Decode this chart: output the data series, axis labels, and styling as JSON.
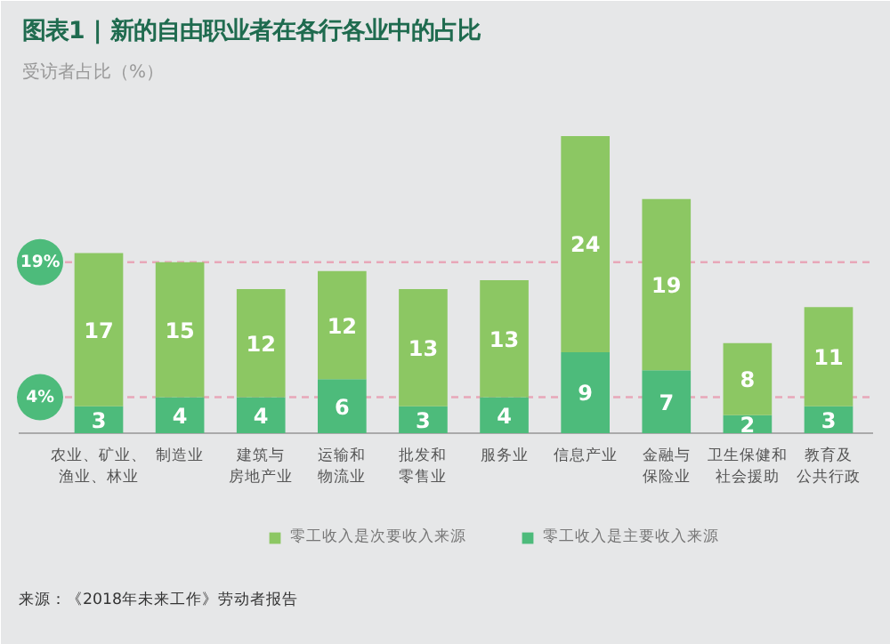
{
  "chart_data": {
    "type": "bar",
    "stacked": true,
    "title": "图表1 | 新的自由职业者在各行各业中的占比",
    "ylabel": "受访者占比（%）",
    "categories": [
      "农业、矿业、渔业、林业",
      "制造业",
      "建筑与房地产业",
      "运输和物流业",
      "批发和零售业",
      "服务业",
      "信息产业",
      "金融与保险业",
      "卫生保健和社会援助",
      "教育及公共行政"
    ],
    "series": [
      {
        "name": "零工收入是主要收入来源",
        "color": "#4dbb7b",
        "values": [
          3,
          4,
          4,
          6,
          3,
          4,
          9,
          7,
          2,
          3
        ]
      },
      {
        "name": "零工收入是次要收入来源",
        "color": "#8cc763",
        "values": [
          17,
          15,
          12,
          12,
          13,
          13,
          24,
          19,
          8,
          11
        ]
      }
    ],
    "data_labels": true,
    "ref_lines": [
      {
        "axis": "y",
        "value": 19,
        "label": "19%",
        "color": "#e8a7b8",
        "line_style": "dashed"
      },
      {
        "axis": "y",
        "value": 4,
        "label": "4%",
        "color": "#e8a7b8",
        "line_style": "dashed"
      }
    ],
    "legend": "bottom",
    "annotations": [
      "来源：《2018年未来工作》劳动者报告"
    ]
  }
}
